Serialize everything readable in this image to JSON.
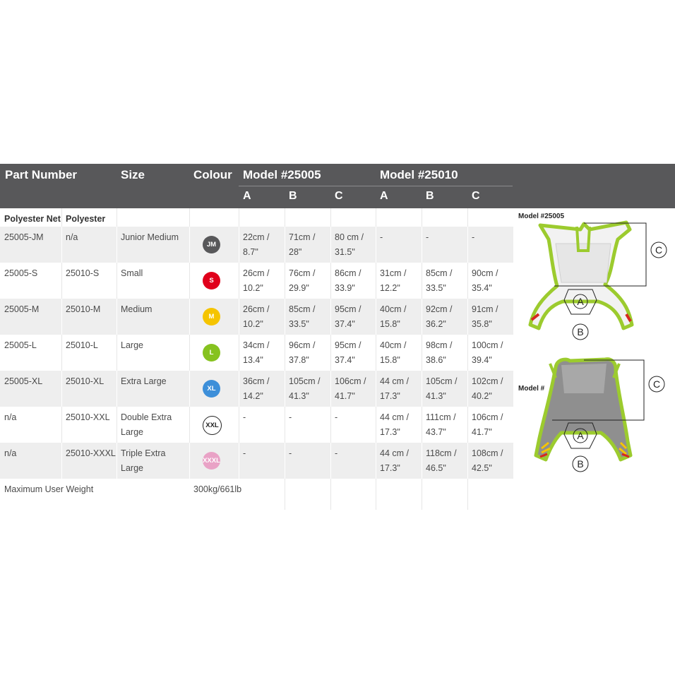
{
  "header": {
    "part_number": "Part Number",
    "size": "Size",
    "colour": "Colour",
    "model_a": "Model #25005",
    "model_b": "Model #25010",
    "cols": [
      "A",
      "B",
      "C",
      "A",
      "B",
      "C"
    ]
  },
  "subheader": {
    "polyester_net": "Polyester Net",
    "polyester": "Polyester"
  },
  "rows": [
    {
      "net": "25005-JM",
      "poly": "n/a",
      "size": "Junior Medium",
      "badge": "JM",
      "badge_color": "#58585a",
      "badge_text": "#ffffff",
      "cells": [
        "22cm /\n8.7\"",
        "71cm /\n28\"",
        "80 cm /\n31.5\"",
        "-",
        "-",
        "-"
      ]
    },
    {
      "net": "25005-S",
      "poly": "25010-S",
      "size": "Small",
      "badge": "S",
      "badge_color": "#e0001b",
      "badge_text": "#ffffff",
      "cells": [
        "26cm /\n10.2\"",
        "76cm /\n29.9\"",
        "86cm /\n33.9\"",
        "31cm /\n12.2\"",
        "85cm /\n33.5\"",
        "90cm /\n35.4\""
      ]
    },
    {
      "net": "25005-M",
      "poly": "25010-M",
      "size": "Medium",
      "badge": "M",
      "badge_color": "#f5c400",
      "badge_text": "#ffffff",
      "cells": [
        "26cm /\n10.2\"",
        "85cm /\n33.5\"",
        "95cm /\n37.4\"",
        "40cm /\n15.8\"",
        "92cm /\n36.2\"",
        "91cm /\n35.8\""
      ]
    },
    {
      "net": "25005-L",
      "poly": "25010-L",
      "size": "Large",
      "badge": "L",
      "badge_color": "#86c21f",
      "badge_text": "#ffffff",
      "cells": [
        "34cm /\n13.4\"",
        "96cm /\n37.8\"",
        "95cm /\n37.4\"",
        "40cm /\n15.8\"",
        "98cm /\n38.6\"",
        "100cm /\n39.4\""
      ]
    },
    {
      "net": "25005-XL",
      "poly": "25010-XL",
      "size": "Extra Large",
      "badge": "XL",
      "badge_color": "#3d8fd9",
      "badge_text": "#ffffff",
      "cells": [
        "36cm /\n14.2\"",
        "105cm /\n41.3\"",
        "106cm /\n41.7\"",
        "44 cm /\n17.3\"",
        "105cm /\n41.3\"",
        "102cm /\n40.2\""
      ]
    },
    {
      "net": "n/a",
      "poly": "25010-XXL",
      "size": "Double Extra\nLarge",
      "badge": "XXL",
      "badge_color": "#ffffff",
      "badge_text": "#222222",
      "cells": [
        "-",
        "-",
        "-",
        "44 cm /\n17.3\"",
        "111cm /\n43.7\"",
        "106cm /\n41.7\""
      ]
    },
    {
      "net": "n/a",
      "poly": "25010-XXXL",
      "size": "Triple Extra Large",
      "badge": "XXXL",
      "badge_color": "#e9a2c6",
      "badge_text": "#ffffff",
      "cells": [
        "-",
        "-",
        "-",
        "44 cm /\n17.3\"",
        "118cm /\n46.5\"",
        "108cm /\n42.5\""
      ]
    }
  ],
  "footer": {
    "label": "Maximum User Weight",
    "value": "300kg/661lb"
  },
  "diagram": {
    "top_label": "Model #25005",
    "bottom_label": "Model #",
    "letters": [
      "A",
      "B",
      "C"
    ]
  }
}
